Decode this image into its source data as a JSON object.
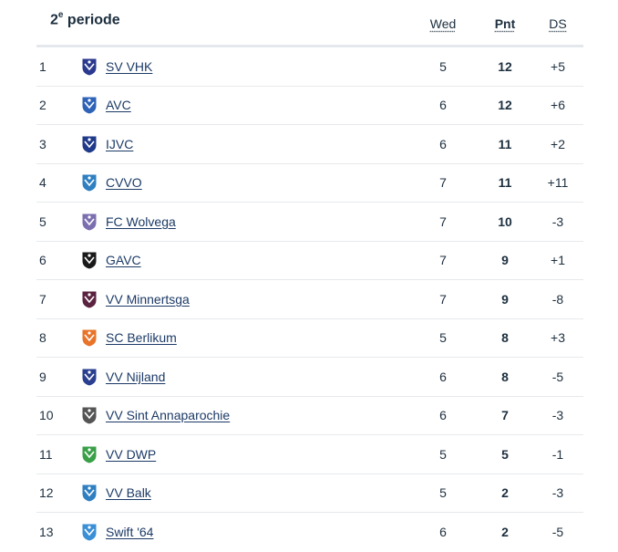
{
  "table": {
    "title": "2",
    "title_sup": "e",
    "title_rest": " periode",
    "columns": {
      "wed": "Wed",
      "pnt": "Pnt",
      "ds": "DS"
    },
    "rows": [
      {
        "pos": "1",
        "team": "SV VHK",
        "wed": "5",
        "pnt": "12",
        "ds": "+5",
        "logo": "vhk-crest-icon",
        "color": "#2b3a8f"
      },
      {
        "pos": "2",
        "team": "AVC",
        "wed": "6",
        "pnt": "12",
        "ds": "+6",
        "logo": "avc-crest-icon",
        "color": "#2f63b8"
      },
      {
        "pos": "3",
        "team": "IJVC",
        "wed": "6",
        "pnt": "11",
        "ds": "+2",
        "logo": "ijvc-crest-icon",
        "color": "#1f3a8a"
      },
      {
        "pos": "4",
        "team": "CVVO",
        "wed": "7",
        "pnt": "11",
        "ds": "+11",
        "logo": "cvvo-crest-icon",
        "color": "#2f7fc1"
      },
      {
        "pos": "5",
        "team": "FC Wolvega",
        "wed": "7",
        "pnt": "10",
        "ds": "-3",
        "logo": "fc-wolvega-crest-icon",
        "color": "#7c6fb0"
      },
      {
        "pos": "6",
        "team": "GAVC",
        "wed": "7",
        "pnt": "9",
        "ds": "+1",
        "logo": "gavc-crest-icon",
        "color": "#1a1a1a"
      },
      {
        "pos": "7",
        "team": "VV Minnertsga",
        "wed": "7",
        "pnt": "9",
        "ds": "-8",
        "logo": "minnertsga-crest-icon",
        "color": "#5a2340"
      },
      {
        "pos": "8",
        "team": "SC Berlikum",
        "wed": "5",
        "pnt": "8",
        "ds": "+3",
        "logo": "berlikum-crest-icon",
        "color": "#e8742a"
      },
      {
        "pos": "9",
        "team": "VV Nijland",
        "wed": "6",
        "pnt": "8",
        "ds": "-5",
        "logo": "nijland-crest-icon",
        "color": "#2a3f8f"
      },
      {
        "pos": "10",
        "team": "VV Sint Annaparochie",
        "wed": "6",
        "pnt": "7",
        "ds": "-3",
        "logo": "annaparochie-crest-icon",
        "color": "#555555"
      },
      {
        "pos": "11",
        "team": "VV DWP",
        "wed": "5",
        "pnt": "5",
        "ds": "-1",
        "logo": "dwp-crest-icon",
        "color": "#3aa048"
      },
      {
        "pos": "12",
        "team": "VV Balk",
        "wed": "5",
        "pnt": "2",
        "ds": "-3",
        "logo": "balk-crest-icon",
        "color": "#2f7fc1"
      },
      {
        "pos": "13",
        "team": "Swift '64",
        "wed": "6",
        "pnt": "2",
        "ds": "-5",
        "logo": "swift64-crest-icon",
        "color": "#3b8fd6"
      }
    ]
  }
}
